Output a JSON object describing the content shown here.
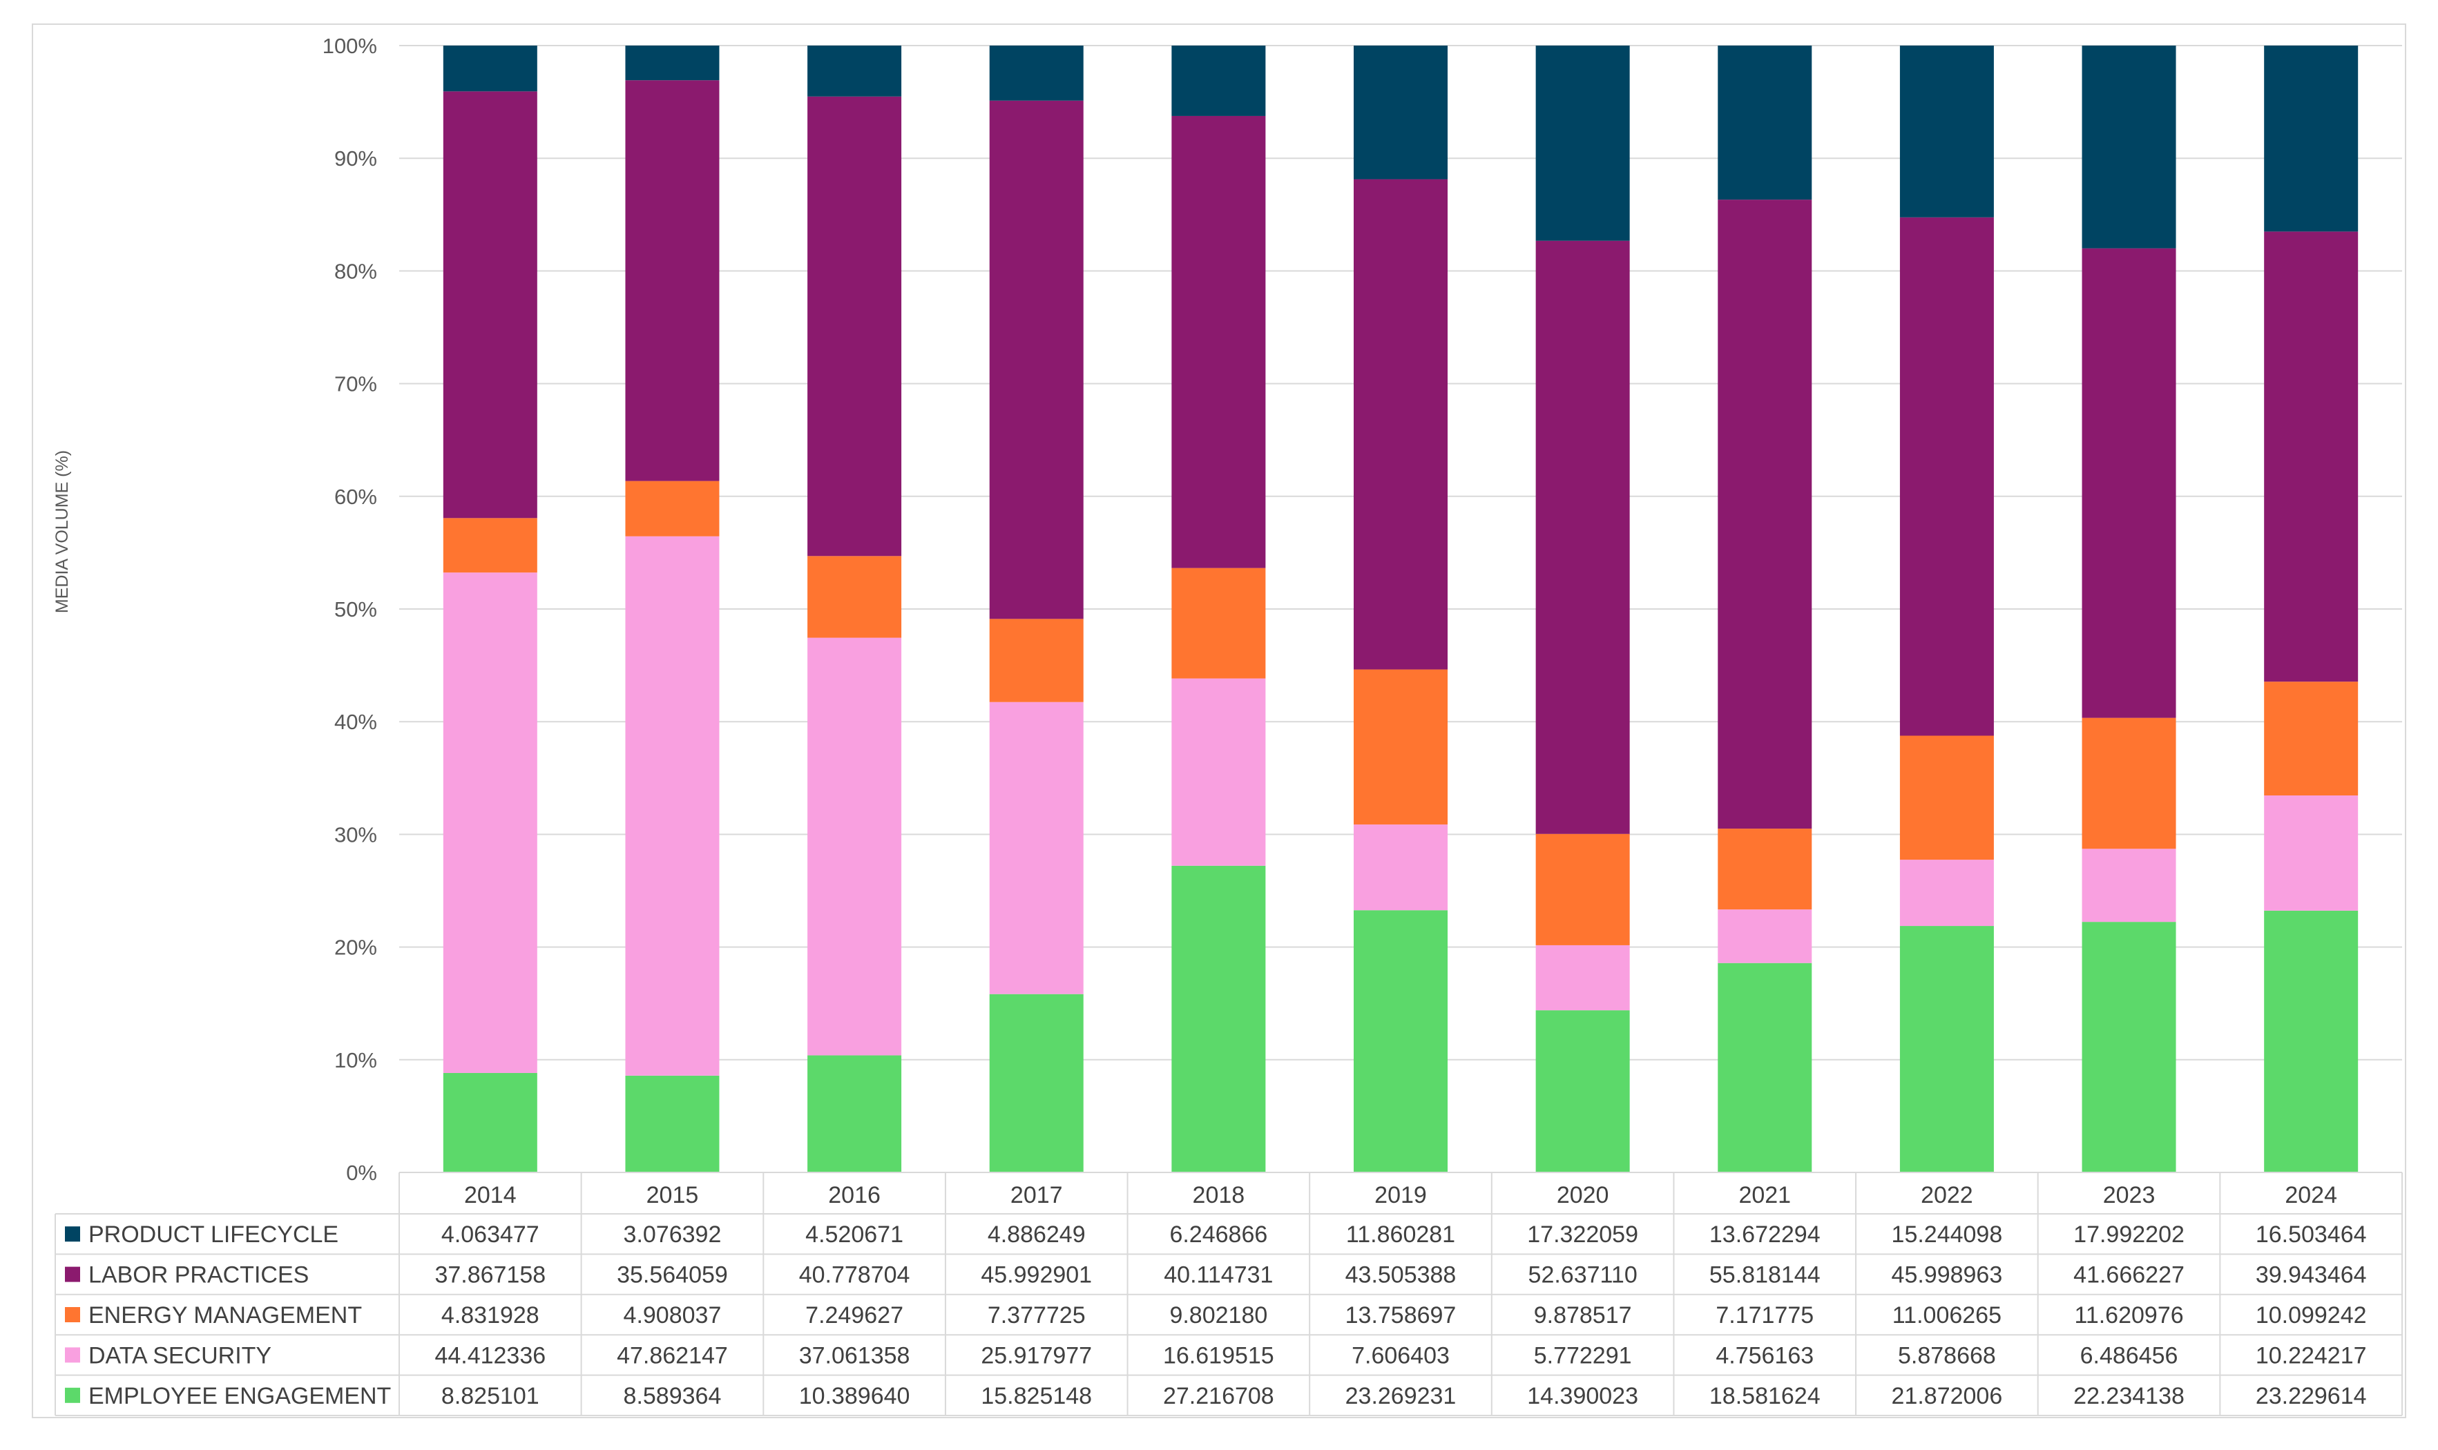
{
  "chart_data": {
    "type": "bar",
    "stacked": "percent",
    "ylabel": "MEDIA VOLUME (%)",
    "ylim": [
      0,
      100
    ],
    "y_ticks": [
      "0%",
      "10%",
      "20%",
      "30%",
      "40%",
      "50%",
      "60%",
      "70%",
      "80%",
      "90%",
      "100%"
    ],
    "categories": [
      "2014",
      "2015",
      "2016",
      "2017",
      "2018",
      "2019",
      "2020",
      "2021",
      "2022",
      "2023",
      "2024"
    ],
    "series": [
      {
        "name": "EMPLOYEE ENGAGEMENT",
        "color": "#5cd96a",
        "values": [
          "8.825101",
          "8.589364",
          "10.389640",
          "15.825148",
          "27.216708",
          "23.269231",
          "14.390023",
          "18.581624",
          "21.872006",
          "22.234138",
          "23.229614"
        ]
      },
      {
        "name": "DATA SECURITY",
        "color": "#f9a0e0",
        "values": [
          "44.412336",
          "47.862147",
          "37.061358",
          "25.917977",
          "16.619515",
          "7.606403",
          "5.772291",
          "4.756163",
          "5.878668",
          "6.486456",
          "10.224217"
        ]
      },
      {
        "name": "ENERGY MANAGEMENT",
        "color": "#ff7530",
        "values": [
          "4.831928",
          "4.908037",
          "7.249627",
          "7.377725",
          "9.802180",
          "13.758697",
          "9.878517",
          "7.171775",
          "11.006265",
          "11.620976",
          "10.099242"
        ]
      },
      {
        "name": "LABOR PRACTICES",
        "color": "#8b1a6e",
        "values": [
          "37.867158",
          "35.564059",
          "40.778704",
          "45.992901",
          "40.114731",
          "43.505388",
          "52.637110",
          "55.818144",
          "45.998963",
          "41.666227",
          "39.943464"
        ]
      },
      {
        "name": "PRODUCT LIFECYCLE",
        "color": "#004462",
        "values": [
          "4.063477",
          "3.076392",
          "4.520671",
          "4.886249",
          "6.246866",
          "11.860281",
          "17.322059",
          "13.672294",
          "15.244098",
          "17.992202",
          "16.503464"
        ]
      }
    ],
    "table_row_order": [
      "PRODUCT LIFECYCLE",
      "LABOR PRACTICES",
      "ENERGY MANAGEMENT",
      "DATA SECURITY",
      "EMPLOYEE ENGAGEMENT"
    ],
    "grid": true,
    "legend": "data-table-below"
  }
}
